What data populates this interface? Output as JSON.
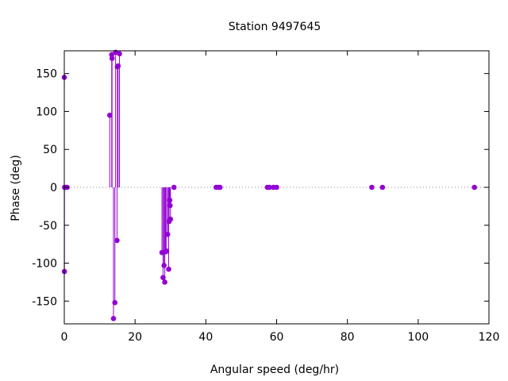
{
  "chart_data": {
    "type": "scatter",
    "style": "impulses-with-points",
    "title": "Station 9497645",
    "xlabel": "Angular speed (deg/hr)",
    "ylabel": "Phase (deg)",
    "xlim": [
      0,
      120
    ],
    "ylim": [
      -180,
      180
    ],
    "xticks": [
      0,
      20,
      40,
      60,
      80,
      100,
      120
    ],
    "yticks": [
      -150,
      -100,
      -50,
      0,
      50,
      100,
      150
    ],
    "xtick_labels": [
      "0",
      "20",
      "40",
      "60",
      "80",
      "100",
      "120"
    ],
    "ytick_labels": [
      "-150",
      "-100",
      "-50",
      "0",
      "50",
      "100",
      "150"
    ],
    "zero_line": "dotted",
    "grid": false,
    "color": "#9400d3",
    "points": [
      {
        "x": 0.0,
        "y": 145
      },
      {
        "x": 0.04,
        "y": -111
      },
      {
        "x": 0.08,
        "y": 0
      },
      {
        "x": 0.5,
        "y": 0
      },
      {
        "x": 0.8,
        "y": 0
      },
      {
        "x": 12.85,
        "y": 95
      },
      {
        "x": 13.4,
        "y": 175
      },
      {
        "x": 13.5,
        "y": 170
      },
      {
        "x": 13.9,
        "y": -173
      },
      {
        "x": 14.3,
        "y": -152
      },
      {
        "x": 14.5,
        "y": 178
      },
      {
        "x": 14.9,
        "y": -70
      },
      {
        "x": 15.0,
        "y": 159
      },
      {
        "x": 15.2,
        "y": 160
      },
      {
        "x": 15.6,
        "y": 176
      },
      {
        "x": 27.6,
        "y": -86
      },
      {
        "x": 27.9,
        "y": -119
      },
      {
        "x": 28.2,
        "y": -103
      },
      {
        "x": 28.4,
        "y": -125
      },
      {
        "x": 28.6,
        "y": -85
      },
      {
        "x": 28.9,
        "y": -84
      },
      {
        "x": 29.2,
        "y": -62
      },
      {
        "x": 29.5,
        "y": -108
      },
      {
        "x": 29.6,
        "y": -45
      },
      {
        "x": 29.8,
        "y": -17
      },
      {
        "x": 29.9,
        "y": -24
      },
      {
        "x": 30.0,
        "y": -42
      },
      {
        "x": 31.0,
        "y": 0
      },
      {
        "x": 42.9,
        "y": 0
      },
      {
        "x": 43.5,
        "y": 0
      },
      {
        "x": 44.0,
        "y": 0
      },
      {
        "x": 57.4,
        "y": 0
      },
      {
        "x": 58.0,
        "y": 0
      },
      {
        "x": 59.1,
        "y": 0
      },
      {
        "x": 60.0,
        "y": 0
      },
      {
        "x": 86.9,
        "y": 0
      },
      {
        "x": 89.9,
        "y": 0
      },
      {
        "x": 115.9,
        "y": 0
      }
    ]
  }
}
